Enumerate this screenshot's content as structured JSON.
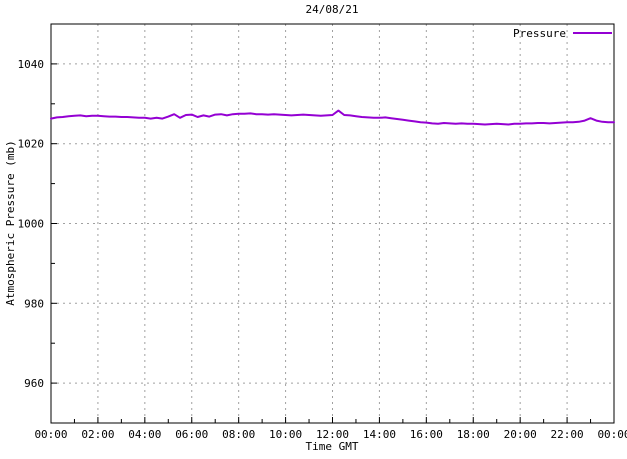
{
  "title": "24/08/21",
  "legend": {
    "label": "Pressure"
  },
  "colors": {
    "series": "#9400d3",
    "grid": "#a0a0a0",
    "border": "#000000",
    "background": "#ffffff",
    "text": "#000000"
  },
  "chart_data": {
    "type": "line",
    "title": "24/08/21",
    "xlabel": "Time GMT",
    "ylabel": "Atmospheric Pressure (mb)",
    "xlim_hours": [
      0,
      24
    ],
    "ylim": [
      950,
      1050
    ],
    "grid": true,
    "legend_position": "top-right-inside",
    "x_major_ticks": [
      {
        "hour": 0,
        "label": "00:00"
      },
      {
        "hour": 2,
        "label": "02:00"
      },
      {
        "hour": 4,
        "label": "04:00"
      },
      {
        "hour": 6,
        "label": "06:00"
      },
      {
        "hour": 8,
        "label": "08:00"
      },
      {
        "hour": 10,
        "label": "10:00"
      },
      {
        "hour": 12,
        "label": "12:00"
      },
      {
        "hour": 14,
        "label": "14:00"
      },
      {
        "hour": 16,
        "label": "16:00"
      },
      {
        "hour": 18,
        "label": "18:00"
      },
      {
        "hour": 20,
        "label": "20:00"
      },
      {
        "hour": 22,
        "label": "22:00"
      },
      {
        "hour": 24,
        "label": "00:00"
      }
    ],
    "x_minor_tick_hours": [
      1,
      3,
      5,
      7,
      9,
      11,
      13,
      15,
      17,
      19,
      21,
      23
    ],
    "y_major_ticks": [
      960,
      980,
      1000,
      1020,
      1040
    ],
    "y_minor_ticks": [
      970,
      990,
      1010,
      1030
    ],
    "series": [
      {
        "name": "Pressure",
        "color": "#9400d3",
        "x_start_hour": 0,
        "x_step_hours": 0.25,
        "values": [
          1026.3,
          1026.6,
          1026.7,
          1026.9,
          1027.0,
          1027.1,
          1026.9,
          1027.0,
          1027.0,
          1026.9,
          1026.8,
          1026.8,
          1026.7,
          1026.7,
          1026.6,
          1026.5,
          1026.5,
          1026.3,
          1026.5,
          1026.3,
          1026.8,
          1027.4,
          1026.5,
          1027.2,
          1027.3,
          1026.7,
          1027.1,
          1026.8,
          1027.3,
          1027.4,
          1027.1,
          1027.4,
          1027.5,
          1027.5,
          1027.6,
          1027.4,
          1027.4,
          1027.3,
          1027.4,
          1027.3,
          1027.2,
          1027.1,
          1027.2,
          1027.3,
          1027.2,
          1027.1,
          1027.0,
          1027.1,
          1027.2,
          1028.3,
          1027.2,
          1027.1,
          1026.9,
          1026.7,
          1026.6,
          1026.5,
          1026.5,
          1026.6,
          1026.4,
          1026.2,
          1026.0,
          1025.8,
          1025.6,
          1025.4,
          1025.3,
          1025.1,
          1025.0,
          1025.2,
          1025.1,
          1025.0,
          1025.1,
          1025.0,
          1025.0,
          1024.9,
          1024.8,
          1024.9,
          1025.0,
          1024.9,
          1024.8,
          1025.0,
          1025.0,
          1025.1,
          1025.1,
          1025.2,
          1025.2,
          1025.1,
          1025.2,
          1025.3,
          1025.4,
          1025.4,
          1025.5,
          1025.8,
          1026.4,
          1025.8,
          1025.5,
          1025.4,
          1025.4
        ]
      }
    ]
  }
}
